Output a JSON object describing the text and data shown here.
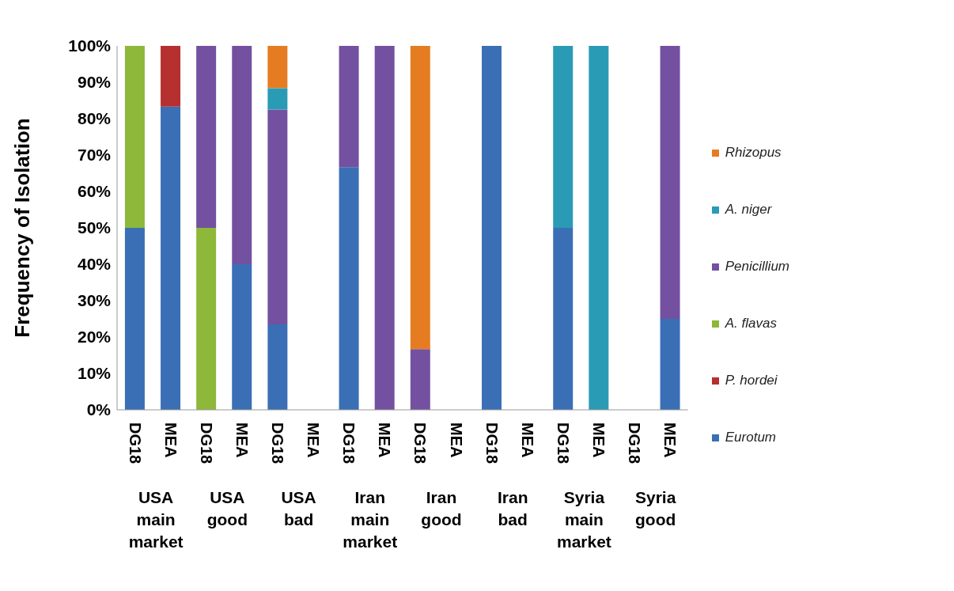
{
  "chart_data": {
    "type": "bar",
    "stacked": true,
    "legend": "right",
    "ylabel": "Frequency of Isolation",
    "categories": [
      "DG18",
      "MEA",
      "DG18",
      "MEA",
      "DG18",
      "MEA",
      "DG18",
      "MEA",
      "DG18",
      "MEA",
      "DG18",
      "MEA",
      "DG18",
      "MEA",
      "DG18",
      "MEA"
    ],
    "annotations": [
      "USA main market",
      "USA good",
      "USA bad",
      "Iran main market",
      "Iran good",
      "Iran bad",
      "Syria main market",
      "Syria good"
    ],
    "ylim": [
      0,
      100
    ],
    "yticks": [
      {
        "value": 0,
        "label": "0%"
      },
      {
        "value": 10,
        "label": "10%"
      },
      {
        "value": 20,
        "label": "20%"
      },
      {
        "value": 30,
        "label": "30%"
      },
      {
        "value": 40,
        "label": "40%"
      },
      {
        "value": 50,
        "label": "50%"
      },
      {
        "value": 60,
        "label": "60%"
      },
      {
        "value": 70,
        "label": "70%"
      },
      {
        "value": 80,
        "label": "80%"
      },
      {
        "value": 90,
        "label": "90%"
      },
      {
        "value": 100,
        "label": "100%"
      }
    ],
    "series": [
      {
        "name": "Eurotum",
        "color": "#3a6fb5",
        "values": [
          50,
          83.3,
          0,
          40,
          23.5,
          0,
          66.7,
          0,
          0,
          0,
          100,
          0,
          50,
          0,
          0,
          25
        ]
      },
      {
        "name": "P. hordei",
        "color": "#b5302e",
        "values": [
          0,
          16.7,
          0,
          0,
          0,
          0,
          0,
          0,
          0,
          0,
          0,
          0,
          0,
          0,
          0,
          0
        ]
      },
      {
        "name": "A. flavas",
        "color": "#8db83a",
        "values": [
          50,
          0,
          50,
          0,
          0,
          0,
          0,
          0,
          0,
          0,
          0,
          0,
          0,
          0,
          0,
          0
        ]
      },
      {
        "name": "Penicillium",
        "color": "#7450a0",
        "values": [
          0,
          0,
          50,
          60,
          59,
          0,
          33.3,
          100,
          16.7,
          0,
          0,
          0,
          0,
          0,
          0,
          75
        ]
      },
      {
        "name": "A. niger",
        "color": "#2a9bb5",
        "values": [
          0,
          0,
          0,
          0,
          5.9,
          0,
          0,
          0,
          0,
          0,
          0,
          0,
          50,
          100,
          0,
          0
        ]
      },
      {
        "name": "Rhizopus",
        "color": "#e67c22",
        "values": [
          0,
          0,
          0,
          0,
          11.6,
          0,
          0,
          0,
          83.3,
          0,
          0,
          0,
          0,
          0,
          0,
          0
        ]
      }
    ]
  }
}
